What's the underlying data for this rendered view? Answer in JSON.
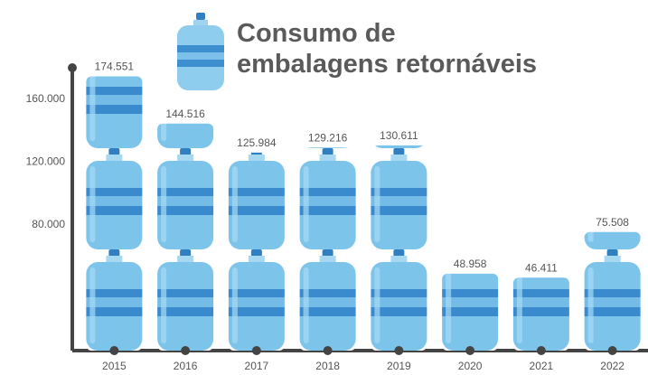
{
  "chart_data": {
    "type": "bar",
    "title": "Consumo de embalagens retornáveis",
    "categories": [
      "2015",
      "2016",
      "2017",
      "2018",
      "2019",
      "2020",
      "2021",
      "2022"
    ],
    "values": [
      174551,
      144516,
      125984,
      129216,
      130611,
      48958,
      46411,
      75508
    ],
    "value_labels": [
      "174.551",
      "144.516",
      "125.984",
      "129.216",
      "130.611",
      "48.958",
      "46.411",
      "75.508"
    ],
    "color": "#7cc4ea",
    "ylim": [
      0,
      180000
    ],
    "yticks": [
      {
        "value": 80000,
        "label": "80.000"
      },
      {
        "value": 120000,
        "label": "120.000"
      },
      {
        "value": 160000,
        "label": "160.000"
      }
    ],
    "grid": false
  }
}
